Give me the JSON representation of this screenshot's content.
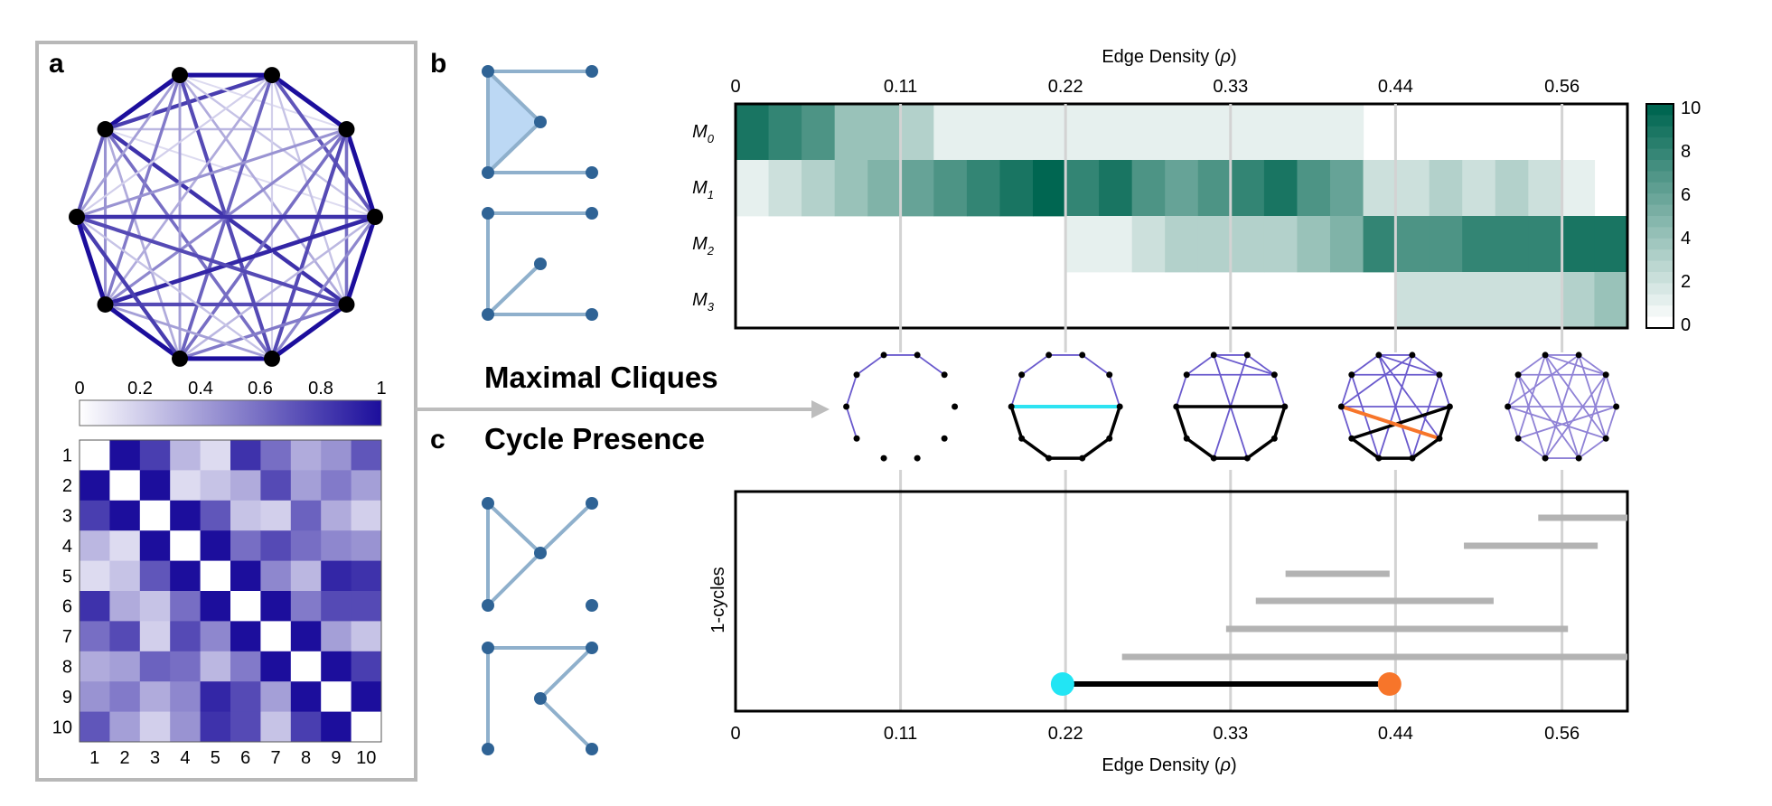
{
  "panel_labels": {
    "a": "a",
    "b": "b",
    "c": "c"
  },
  "headings": {
    "cliques": "Maximal Cliques",
    "cycles": "Cycle Presence"
  },
  "axis": {
    "top_label": "Edge Density (",
    "rho": "ρ",
    "close": ")",
    "bottom_label": "Edge Density (",
    "ticks": [
      "0",
      "0.11",
      "0.22",
      "0.33",
      "0.44",
      "0.56"
    ]
  },
  "panel_a": {
    "colorbar_ticks": [
      "0",
      "0.2",
      "0.4",
      "0.6",
      "0.8",
      "1"
    ],
    "matrix_labels": [
      "1",
      "2",
      "3",
      "4",
      "5",
      "6",
      "7",
      "8",
      "9",
      "10"
    ],
    "matrix_values": [
      [
        0.0,
        1.0,
        0.8,
        0.3,
        0.15,
        0.85,
        0.6,
        0.35,
        0.45,
        0.7
      ],
      [
        1.0,
        0.0,
        1.0,
        0.15,
        0.25,
        0.35,
        0.75,
        0.4,
        0.55,
        0.4
      ],
      [
        0.8,
        1.0,
        0.0,
        1.0,
        0.7,
        0.25,
        0.2,
        0.65,
        0.35,
        0.2
      ],
      [
        0.3,
        0.15,
        1.0,
        0.0,
        1.0,
        0.6,
        0.75,
        0.6,
        0.5,
        0.45
      ],
      [
        0.15,
        0.25,
        0.7,
        1.0,
        0.0,
        1.0,
        0.5,
        0.3,
        0.9,
        0.85
      ],
      [
        0.85,
        0.35,
        0.25,
        0.6,
        1.0,
        0.0,
        1.0,
        0.55,
        0.75,
        0.75
      ],
      [
        0.6,
        0.75,
        0.2,
        0.75,
        0.5,
        1.0,
        0.0,
        1.0,
        0.4,
        0.25
      ],
      [
        0.35,
        0.4,
        0.65,
        0.6,
        0.3,
        0.55,
        1.0,
        0.0,
        1.0,
        0.8
      ],
      [
        0.45,
        0.55,
        0.35,
        0.5,
        0.9,
        0.75,
        0.4,
        1.0,
        0.0,
        1.0
      ],
      [
        0.7,
        0.4,
        0.2,
        0.45,
        0.85,
        0.75,
        0.25,
        0.8,
        1.0,
        0.0
      ]
    ],
    "colors": {
      "low": "#ffffff",
      "high": "#1c0e9c"
    }
  },
  "panel_b": {
    "row_labels": [
      {
        "base": "M",
        "sub": "0"
      },
      {
        "base": "M",
        "sub": "1"
      },
      {
        "base": "M",
        "sub": "2"
      },
      {
        "base": "M",
        "sub": "3"
      }
    ],
    "colorbar_ticks": [
      "10",
      "8",
      "6",
      "4",
      "2",
      "0"
    ],
    "heatmap": [
      [
        9,
        8,
        7,
        4,
        4,
        3,
        1,
        1,
        1,
        1,
        1,
        1,
        1,
        1,
        1,
        1,
        1,
        1,
        1,
        0,
        0,
        0,
        0,
        0,
        0,
        0,
        0
      ],
      [
        1,
        2,
        3,
        4,
        5,
        6,
        7,
        8,
        9,
        10,
        8,
        9,
        7,
        6,
        7,
        8,
        9,
        7,
        6,
        2,
        2,
        3,
        2,
        3,
        2,
        1,
        0
      ],
      [
        0,
        0,
        0,
        0,
        0,
        0,
        0,
        0,
        0,
        0,
        1,
        1,
        2,
        3,
        3,
        3,
        3,
        4,
        5,
        8,
        7,
        7,
        8,
        8,
        8,
        9,
        9
      ],
      [
        0,
        0,
        0,
        0,
        0,
        0,
        0,
        0,
        0,
        0,
        0,
        0,
        0,
        0,
        0,
        0,
        0,
        0,
        0,
        0,
        2,
        2,
        2,
        2,
        2,
        3,
        4
      ]
    ],
    "colors": {
      "low": "#ffffff",
      "high": "#006651"
    }
  },
  "panel_c": {
    "ylabel": "1-cycles",
    "bars": [
      {
        "start": 0.54,
        "end": 0.6
      },
      {
        "start": 0.49,
        "end": 0.58
      },
      {
        "start": 0.37,
        "end": 0.44
      },
      {
        "start": 0.35,
        "end": 0.51
      },
      {
        "start": 0.33,
        "end": 0.56
      },
      {
        "start": 0.26,
        "end": 0.6
      }
    ],
    "highlight": {
      "start": 0.22,
      "end": 0.44
    },
    "colors": {
      "bar": "#b3b3b3",
      "highlight": "#000000",
      "birth": "#22e5f4",
      "death": "#f7752a"
    }
  },
  "chart_data": [
    {
      "type": "heatmap",
      "x": [
        0.0,
        0.022,
        0.044,
        0.067,
        0.089,
        0.111,
        0.133,
        0.156,
        0.178,
        0.2,
        0.222,
        0.244,
        0.267,
        0.289,
        0.311,
        0.333,
        0.356,
        0.378,
        0.4,
        0.422,
        0.444,
        0.467,
        0.489,
        0.511,
        0.533,
        0.556,
        0.578
      ],
      "rows": [
        "M0",
        "M1",
        "M2",
        "M3"
      ],
      "xlabel": "Edge Density (ρ)",
      "color_range": [
        0,
        10
      ]
    },
    {
      "type": "bar",
      "orientation": "horizontal intervals",
      "xlabel": "Edge Density (ρ)",
      "ylabel": "1-cycles",
      "xlim": [
        0,
        0.6
      ]
    }
  ]
}
